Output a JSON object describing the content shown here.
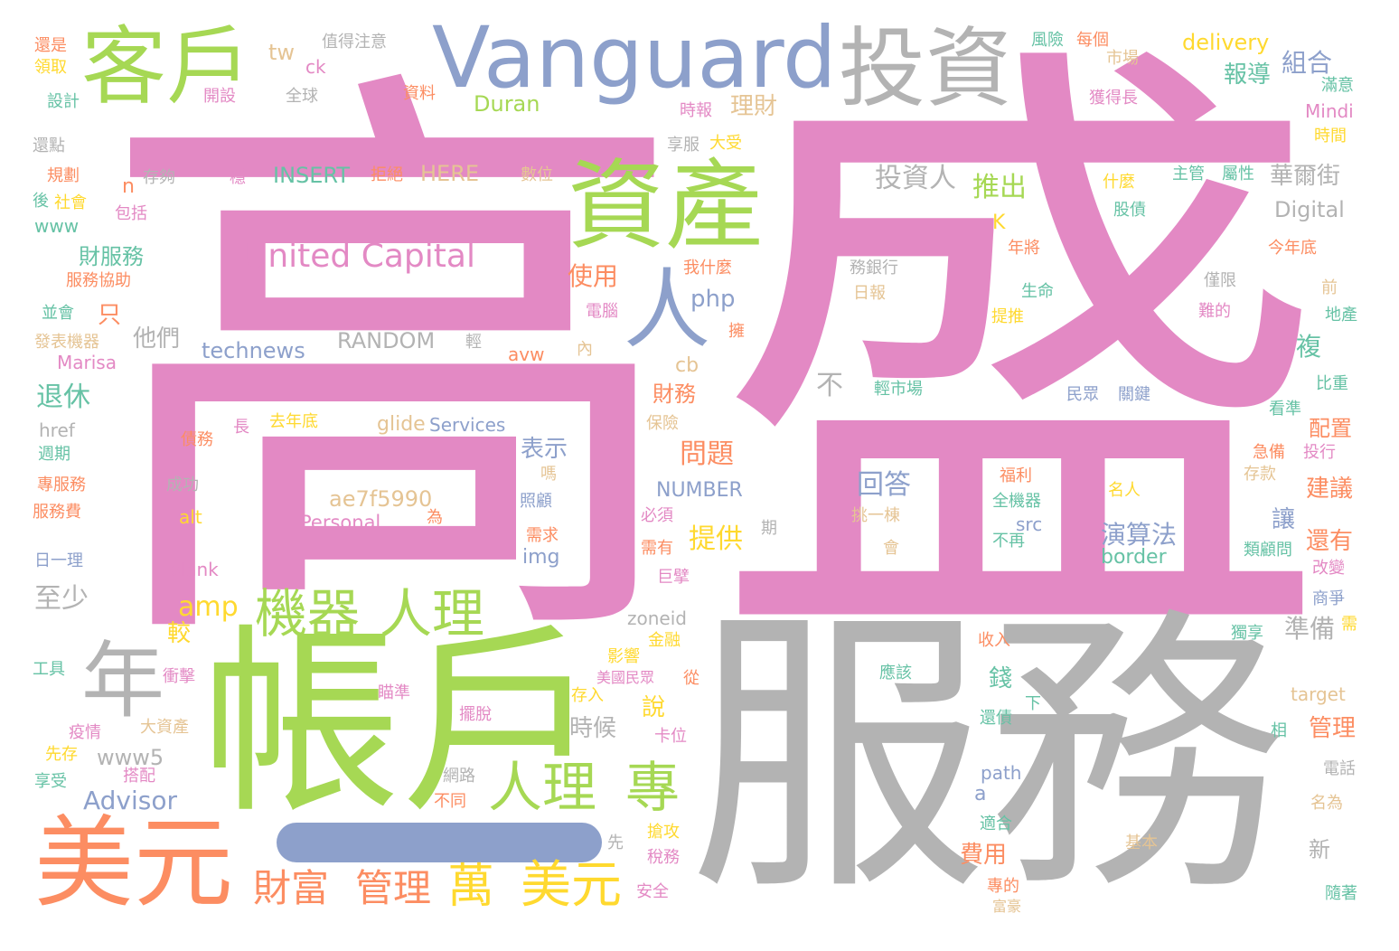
{
  "palette": {
    "pink": "#e389c4",
    "grey": "#b3b3b3",
    "green": "#a6d854",
    "blue": "#8da0cb",
    "orange": "#fc8d62",
    "yellow": "#ffd92f",
    "teal": "#66c2a5",
    "tan": "#e5c494"
  },
  "words": [
    {
      "text": "高",
      "color": "pink"
    },
    {
      "text": "盛",
      "color": "pink"
    },
    {
      "text": "服務",
      "color": "grey"
    },
    {
      "text": "帳戶",
      "color": "green"
    },
    {
      "text": "Vanguard",
      "color": "blue"
    },
    {
      "text": "投資",
      "color": "grey"
    },
    {
      "text": "客戶",
      "color": "green"
    },
    {
      "text": "資產",
      "color": "green"
    },
    {
      "text": "美元",
      "color": "orange"
    },
    {
      "text": "年",
      "color": "grey"
    },
    {
      "text": "人",
      "color": "blue"
    },
    {
      "text": "United Capital",
      "color": "pink"
    },
    {
      "text": "機器",
      "color": "green"
    },
    {
      "text": "人理",
      "color": "green"
    },
    {
      "text": "人理",
      "color": "green"
    },
    {
      "text": "專",
      "color": "green"
    },
    {
      "text": "財富",
      "color": "orange"
    },
    {
      "text": "管理",
      "color": "orange"
    },
    {
      "text": "萬",
      "color": "yellow"
    },
    {
      "text": "美元",
      "color": "yellow"
    },
    {
      "text": "Advisor",
      "color": "blue"
    },
    {
      "text": "Personal",
      "color": "pink"
    },
    {
      "text": "ae7f5990",
      "color": "tan"
    },
    {
      "text": "投資人",
      "color": "grey"
    },
    {
      "text": "推出",
      "color": "green"
    },
    {
      "text": "INSERT",
      "color": "teal"
    },
    {
      "text": "HERE",
      "color": "tan"
    },
    {
      "text": "RANDOM",
      "color": "grey"
    },
    {
      "text": "technews",
      "color": "blue"
    },
    {
      "text": "Duran",
      "color": "green"
    },
    {
      "text": "delivery",
      "color": "yellow"
    },
    {
      "text": "Digital",
      "color": "grey"
    },
    {
      "text": "華爾街",
      "color": "grey"
    },
    {
      "text": "報導",
      "color": "teal"
    },
    {
      "text": "組合",
      "color": "blue"
    },
    {
      "text": "回答",
      "color": "blue"
    },
    {
      "text": "演算法",
      "color": "blue"
    },
    {
      "text": "提供",
      "color": "yellow"
    },
    {
      "text": "問題",
      "color": "orange"
    },
    {
      "text": "NUMBER",
      "color": "blue"
    },
    {
      "text": "表示",
      "color": "blue"
    },
    {
      "text": "財務",
      "color": "orange"
    },
    {
      "text": "退休",
      "color": "teal"
    },
    {
      "text": "財服務",
      "color": "teal"
    },
    {
      "text": "服務協助",
      "color": "orange"
    },
    {
      "text": "使用",
      "color": "orange"
    },
    {
      "text": "php",
      "color": "blue"
    },
    {
      "text": "他們",
      "color": "grey"
    },
    {
      "text": "至少",
      "color": "grey"
    },
    {
      "text": "amp",
      "color": "yellow"
    },
    {
      "text": "時候",
      "color": "grey"
    },
    {
      "text": "www5",
      "color": "grey"
    },
    {
      "text": "準備",
      "color": "grey"
    },
    {
      "text": "管理",
      "color": "orange"
    },
    {
      "text": "建議",
      "color": "orange"
    },
    {
      "text": "還有",
      "color": "orange"
    },
    {
      "text": "配置",
      "color": "orange"
    },
    {
      "text": "理財",
      "color": "tan"
    },
    {
      "text": "glide",
      "color": "tan"
    },
    {
      "text": "Services",
      "color": "blue"
    },
    {
      "text": "費用",
      "color": "orange"
    },
    {
      "text": "錢",
      "color": "teal"
    },
    {
      "text": "說",
      "color": "yellow"
    },
    {
      "text": "較",
      "color": "yellow"
    },
    {
      "text": "不",
      "color": "grey"
    },
    {
      "text": "img",
      "color": "blue"
    },
    {
      "text": "border",
      "color": "teal"
    },
    {
      "text": "path",
      "color": "blue"
    },
    {
      "text": "zoneid",
      "color": "grey"
    },
    {
      "text": "target",
      "color": "tan"
    },
    {
      "text": "blank",
      "color": "pink"
    },
    {
      "text": "alt",
      "color": "yellow"
    },
    {
      "text": "href",
      "color": "grey"
    },
    {
      "text": "www",
      "color": "teal"
    },
    {
      "text": "Marisa",
      "color": "pink"
    },
    {
      "text": "Mindi",
      "color": "pink"
    },
    {
      "text": "tw",
      "color": "tan"
    },
    {
      "text": "ck",
      "color": "pink"
    },
    {
      "text": "cb",
      "color": "tan"
    },
    {
      "text": "avw",
      "color": "orange"
    },
    {
      "text": "src",
      "color": "blue"
    },
    {
      "text": "n",
      "color": "orange"
    },
    {
      "text": "K",
      "color": "yellow"
    },
    {
      "text": "a",
      "color": "blue"
    },
    {
      "text": "只",
      "color": "orange"
    },
    {
      "text": "值得注意",
      "color": "grey"
    },
    {
      "text": "全球",
      "color": "grey"
    },
    {
      "text": "開設",
      "color": "pink"
    },
    {
      "text": "資料",
      "color": "orange"
    },
    {
      "text": "時報",
      "color": "pink"
    },
    {
      "text": "享服",
      "color": "grey"
    },
    {
      "text": "大受",
      "color": "yellow"
    },
    {
      "text": "數位",
      "color": "tan"
    },
    {
      "text": "存夠",
      "color": "grey"
    },
    {
      "text": "拒絕",
      "color": "orange"
    },
    {
      "text": "還是",
      "color": "orange"
    },
    {
      "text": "領取",
      "color": "yellow"
    },
    {
      "text": "設計",
      "color": "teal"
    },
    {
      "text": "還點",
      "color": "grey"
    },
    {
      "text": "規劃",
      "color": "orange"
    },
    {
      "text": "社會",
      "color": "yellow"
    },
    {
      "text": "包括",
      "color": "pink"
    },
    {
      "text": "並會",
      "color": "teal"
    },
    {
      "text": "發表機器",
      "color": "tan"
    },
    {
      "text": "週期",
      "color": "teal"
    },
    {
      "text": "專服務",
      "color": "orange"
    },
    {
      "text": "服務費",
      "color": "orange"
    },
    {
      "text": "日一理",
      "color": "blue"
    },
    {
      "text": "工具",
      "color": "teal"
    },
    {
      "text": "衝擊",
      "color": "pink"
    },
    {
      "text": "大資產",
      "color": "tan"
    },
    {
      "text": "疫情",
      "color": "pink"
    },
    {
      "text": "先存",
      "color": "yellow"
    },
    {
      "text": "享受",
      "color": "teal"
    },
    {
      "text": "搭配",
      "color": "pink"
    },
    {
      "text": "債務",
      "color": "orange"
    },
    {
      "text": "長",
      "color": "pink"
    },
    {
      "text": "去年底",
      "color": "yellow"
    },
    {
      "text": "成功",
      "color": "grey"
    },
    {
      "text": "務銀行",
      "color": "grey"
    },
    {
      "text": "日報",
      "color": "tan"
    },
    {
      "text": "我什麼",
      "color": "orange"
    },
    {
      "text": "生命",
      "color": "teal"
    },
    {
      "text": "年將",
      "color": "orange"
    },
    {
      "text": "提推",
      "color": "yellow"
    },
    {
      "text": "輕市場",
      "color": "teal"
    },
    {
      "text": "民眾",
      "color": "blue"
    },
    {
      "text": "關鍵",
      "color": "blue"
    },
    {
      "text": "主管",
      "color": "teal"
    },
    {
      "text": "屬性",
      "color": "teal"
    },
    {
      "text": "什麼",
      "color": "yellow"
    },
    {
      "text": "股債",
      "color": "teal"
    },
    {
      "text": "今年底",
      "color": "orange"
    },
    {
      "text": "僅限",
      "color": "grey"
    },
    {
      "text": "難的",
      "color": "pink"
    },
    {
      "text": "前",
      "color": "tan"
    },
    {
      "text": "地產",
      "color": "teal"
    },
    {
      "text": "比重",
      "color": "teal"
    },
    {
      "text": "看準",
      "color": "teal"
    },
    {
      "text": "投行",
      "color": "pink"
    },
    {
      "text": "急備",
      "color": "orange"
    },
    {
      "text": "存款",
      "color": "tan"
    },
    {
      "text": "類顧問",
      "color": "teal"
    },
    {
      "text": "改變",
      "color": "pink"
    },
    {
      "text": "商爭",
      "color": "blue"
    },
    {
      "text": "獨享",
      "color": "teal"
    },
    {
      "text": "收入",
      "color": "orange"
    },
    {
      "text": "應該",
      "color": "teal"
    },
    {
      "text": "還債",
      "color": "teal"
    },
    {
      "text": "下",
      "color": "teal"
    },
    {
      "text": "適合",
      "color": "teal"
    },
    {
      "text": "專的",
      "color": "orange"
    },
    {
      "text": "富豪",
      "color": "tan"
    },
    {
      "text": "基本",
      "color": "tan"
    },
    {
      "text": "名為",
      "color": "tan"
    },
    {
      "text": "電話",
      "color": "grey"
    },
    {
      "text": "相",
      "color": "teal"
    },
    {
      "text": "隨著",
      "color": "teal"
    },
    {
      "text": "福利",
      "color": "orange"
    },
    {
      "text": "全機器",
      "color": "teal"
    },
    {
      "text": "不再",
      "color": "teal"
    },
    {
      "text": "名人",
      "color": "yellow"
    },
    {
      "text": "挑一棟",
      "color": "tan"
    },
    {
      "text": "會",
      "color": "tan"
    },
    {
      "text": "必須",
      "color": "pink"
    },
    {
      "text": "需有",
      "color": "orange"
    },
    {
      "text": "巨擘",
      "color": "pink"
    },
    {
      "text": "需求",
      "color": "orange"
    },
    {
      "text": "照顧",
      "color": "blue"
    },
    {
      "text": "嗎",
      "color": "tan"
    },
    {
      "text": "期",
      "color": "grey"
    },
    {
      "text": "為",
      "color": "orange"
    },
    {
      "text": "保險",
      "color": "tan"
    },
    {
      "text": "金融",
      "color": "yellow"
    },
    {
      "text": "影響",
      "color": "yellow"
    },
    {
      "text": "美國民眾",
      "color": "pink"
    },
    {
      "text": "從",
      "color": "orange"
    },
    {
      "text": "存入",
      "color": "yellow"
    },
    {
      "text": "擺脫",
      "color": "pink"
    },
    {
      "text": "卡位",
      "color": "pink"
    },
    {
      "text": "瞄準",
      "color": "pink"
    },
    {
      "text": "網路",
      "color": "grey"
    },
    {
      "text": "不同",
      "color": "orange"
    },
    {
      "text": "先",
      "color": "grey"
    },
    {
      "text": "搶攻",
      "color": "yellow"
    },
    {
      "text": "稅務",
      "color": "pink"
    },
    {
      "text": "安全",
      "color": "pink"
    },
    {
      "text": "新",
      "color": "grey"
    },
    {
      "text": "電腦",
      "color": "pink"
    },
    {
      "text": "擁",
      "color": "orange"
    },
    {
      "text": "內",
      "color": "tan"
    },
    {
      "text": "輕",
      "color": "grey"
    },
    {
      "text": "穩",
      "color": "pink"
    },
    {
      "text": "風險",
      "color": "teal"
    },
    {
      "text": "每個",
      "color": "orange"
    },
    {
      "text": "市場",
      "color": "tan"
    },
    {
      "text": "滿意",
      "color": "teal"
    },
    {
      "text": "獲得長",
      "color": "pink"
    },
    {
      "text": "時間",
      "color": "yellow"
    },
    {
      "text": "後",
      "color": "teal"
    },
    {
      "text": "複",
      "color": "teal"
    },
    {
      "text": "讓",
      "color": "blue"
    },
    {
      "text": "需",
      "color": "yellow"
    }
  ]
}
